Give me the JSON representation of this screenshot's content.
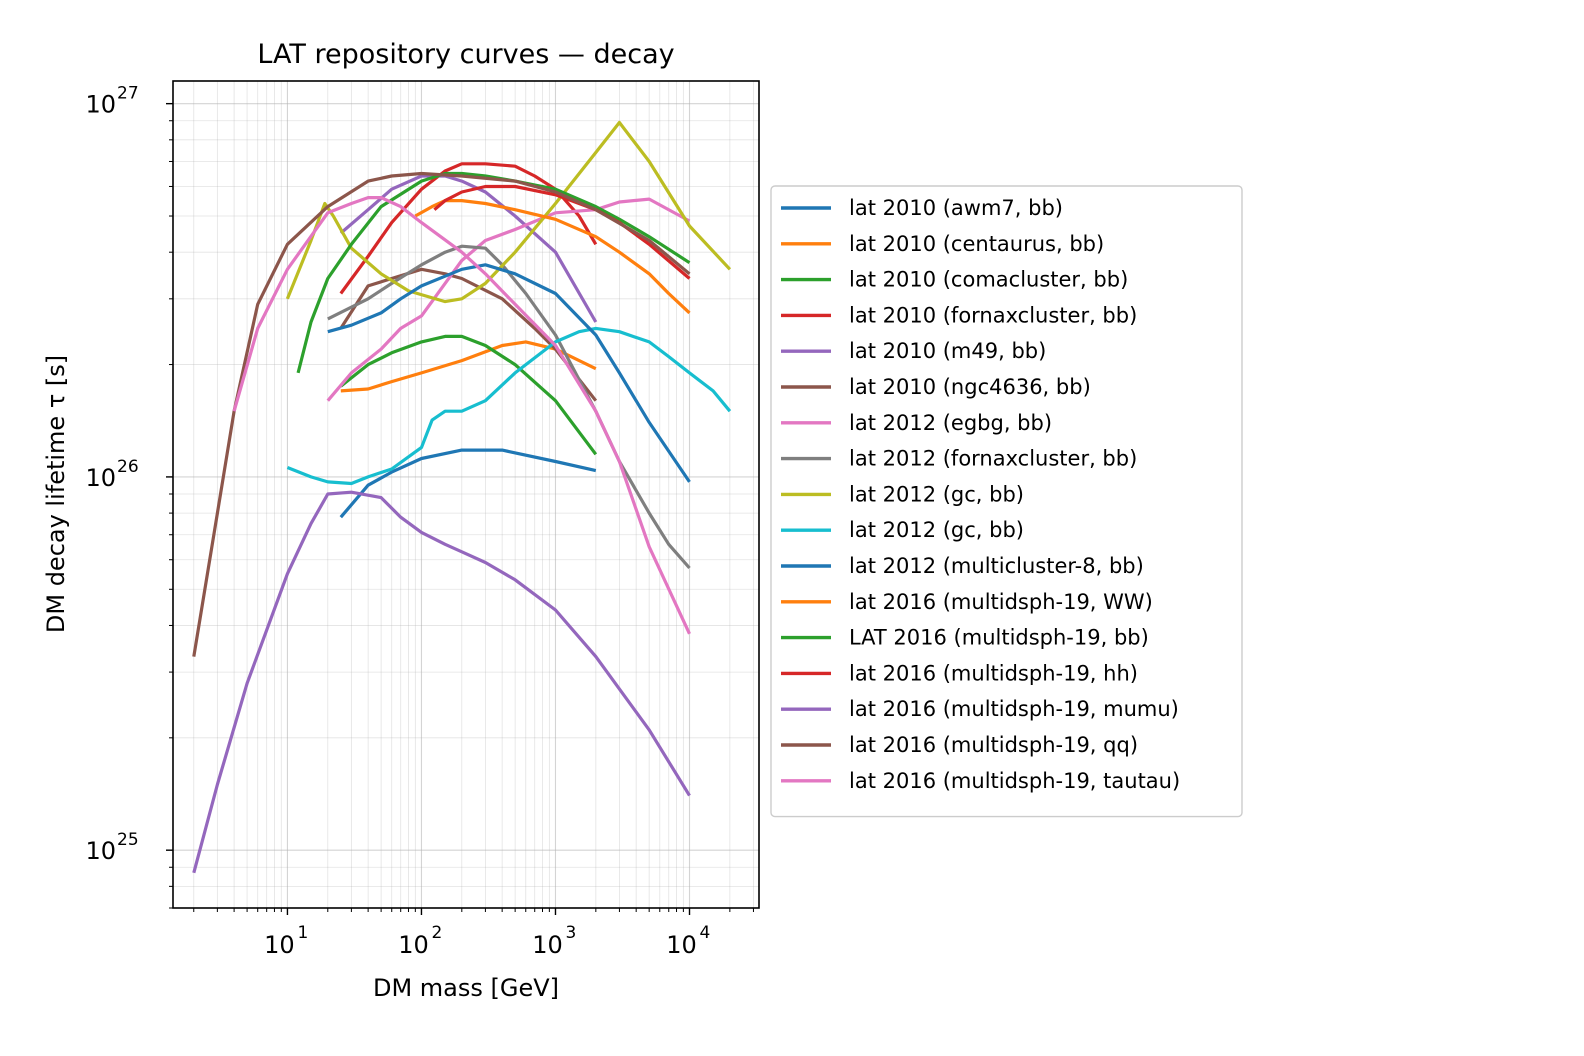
{
  "chart_data": {
    "type": "line",
    "title": "LAT repository curves — decay",
    "xlabel": "DM mass [GeV]",
    "ylabel": "DM decay lifetime τ [s]",
    "xscale": "log",
    "yscale": "log",
    "xlim": [
      1.4,
      33000
    ],
    "ylim": [
      7e+24,
      1.15e+27
    ],
    "x_ticks": [
      {
        "base": "10",
        "exp": "1",
        "value": 10
      },
      {
        "base": "10",
        "exp": "2",
        "value": 100
      },
      {
        "base": "10",
        "exp": "3",
        "value": 1000
      },
      {
        "base": "10",
        "exp": "4",
        "value": 10000
      }
    ],
    "y_ticks": [
      {
        "base": "10",
        "exp": "25",
        "value": 1e+25
      },
      {
        "base": "10",
        "exp": "26",
        "value": 1e+26
      },
      {
        "base": "10",
        "exp": "27",
        "value": 1e+27
      }
    ],
    "grid": true,
    "legend_position": "right-outside",
    "series": [
      {
        "name": "lat 2010 (awm7, bb)",
        "color": "#1f77b4",
        "points": [
          [
            25,
            7.8e+25
          ],
          [
            40,
            9.5e+25
          ],
          [
            60,
            1.03e+26
          ],
          [
            100,
            1.12e+26
          ],
          [
            200,
            1.18e+26
          ],
          [
            400,
            1.18e+26
          ],
          [
            1000,
            1.1e+26
          ],
          [
            2000,
            1.04e+26
          ]
        ]
      },
      {
        "name": "lat 2010 (centaurus, bb)",
        "color": "#ff7f0e",
        "points": [
          [
            25,
            1.7e+26
          ],
          [
            40,
            1.72e+26
          ],
          [
            60,
            1.8e+26
          ],
          [
            100,
            1.9e+26
          ],
          [
            200,
            2.05e+26
          ],
          [
            400,
            2.25e+26
          ],
          [
            600,
            2.3e+26
          ],
          [
            1000,
            2.2e+26
          ],
          [
            2000,
            1.95e+26
          ]
        ]
      },
      {
        "name": "lat 2010 (comacluster, bb)",
        "color": "#2ca02c",
        "points": [
          [
            25,
            1.75e+26
          ],
          [
            40,
            2e+26
          ],
          [
            60,
            2.15e+26
          ],
          [
            100,
            2.3e+26
          ],
          [
            150,
            2.38e+26
          ],
          [
            200,
            2.38e+26
          ],
          [
            300,
            2.25e+26
          ],
          [
            500,
            2e+26
          ],
          [
            1000,
            1.6e+26
          ],
          [
            2000,
            1.15e+26
          ]
        ]
      },
      {
        "name": "lat 2010 (fornaxcluster, bb)",
        "color": "#d62728",
        "points": [
          [
            25,
            3.1e+26
          ],
          [
            40,
            3.9e+26
          ],
          [
            60,
            4.8e+26
          ],
          [
            100,
            5.9e+26
          ],
          [
            150,
            6.6e+26
          ],
          [
            200,
            6.9e+26
          ],
          [
            300,
            6.9e+26
          ],
          [
            500,
            6.8e+26
          ],
          [
            700,
            6.4e+26
          ],
          [
            1000,
            5.9e+26
          ],
          [
            1500,
            5e+26
          ],
          [
            2000,
            4.2e+26
          ]
        ]
      },
      {
        "name": "lat 2010 (m49, bb)",
        "color": "#9467bd",
        "points": [
          [
            25,
            4.5e+26
          ],
          [
            40,
            5.2e+26
          ],
          [
            60,
            5.9e+26
          ],
          [
            100,
            6.4e+26
          ],
          [
            150,
            6.4e+26
          ],
          [
            200,
            6.2e+26
          ],
          [
            300,
            5.8e+26
          ],
          [
            500,
            5e+26
          ],
          [
            1000,
            4e+26
          ],
          [
            2000,
            2.6e+26
          ]
        ]
      },
      {
        "name": "lat 2010 (ngc4636, bb)",
        "color": "#8c564b",
        "points": [
          [
            25,
            2.5e+26
          ],
          [
            40,
            3.25e+26
          ],
          [
            60,
            3.4e+26
          ],
          [
            100,
            3.6e+26
          ],
          [
            150,
            3.5e+26
          ],
          [
            200,
            3.4e+26
          ],
          [
            400,
            3e+26
          ],
          [
            700,
            2.5e+26
          ],
          [
            1000,
            2.2e+26
          ],
          [
            2000,
            1.6e+26
          ]
        ]
      },
      {
        "name": "lat 2012 (egbg, bb)",
        "color": "#e377c2",
        "points": [
          [
            20,
            1.6e+26
          ],
          [
            30,
            1.9e+26
          ],
          [
            50,
            2.2e+26
          ],
          [
            70,
            2.5e+26
          ],
          [
            100,
            2.7e+26
          ],
          [
            150,
            3.3e+26
          ],
          [
            200,
            3.8e+26
          ],
          [
            300,
            4.3e+26
          ],
          [
            500,
            4.6e+26
          ],
          [
            1000,
            5.1e+26
          ],
          [
            2000,
            5.2e+26
          ],
          [
            3000,
            5.45e+26
          ],
          [
            5000,
            5.55e+26
          ],
          [
            10000,
            4.85e+26
          ]
        ]
      },
      {
        "name": "lat 2012 (fornaxcluster, bb)",
        "color": "#7f7f7f",
        "points": [
          [
            20,
            2.65e+26
          ],
          [
            40,
            3e+26
          ],
          [
            60,
            3.3e+26
          ],
          [
            100,
            3.7e+26
          ],
          [
            150,
            4e+26
          ],
          [
            200,
            4.15e+26
          ],
          [
            300,
            4.1e+26
          ],
          [
            400,
            3.7e+26
          ],
          [
            600,
            3.1e+26
          ],
          [
            1000,
            2.4e+26
          ],
          [
            2000,
            1.5e+26
          ],
          [
            3000,
            1.1e+26
          ],
          [
            5000,
            8e+25
          ],
          [
            7000,
            6.6e+25
          ],
          [
            10000,
            5.7e+25
          ]
        ]
      },
      {
        "name": "lat 2012 (gc, bb)",
        "color": "#bcbd22",
        "points": [
          [
            10,
            3e+26
          ],
          [
            15,
            4.3e+26
          ],
          [
            19,
            5.4e+26
          ],
          [
            22,
            5e+26
          ],
          [
            30,
            4.1e+26
          ],
          [
            50,
            3.5e+26
          ],
          [
            80,
            3.15e+26
          ],
          [
            150,
            2.95e+26
          ],
          [
            200,
            3e+26
          ],
          [
            300,
            3.3e+26
          ],
          [
            500,
            4e+26
          ],
          [
            1000,
            5.4e+26
          ],
          [
            2000,
            7.4e+26
          ],
          [
            3000,
            8.9e+26
          ],
          [
            5000,
            7e+26
          ],
          [
            10000,
            4.7e+26
          ],
          [
            20000,
            3.6e+26
          ]
        ]
      },
      {
        "name": "lat 2012 (gc, bb)",
        "color": "#17becf",
        "points": [
          [
            10,
            1.06e+26
          ],
          [
            15,
            1e+26
          ],
          [
            20,
            9.7e+25
          ],
          [
            30,
            9.6e+25
          ],
          [
            40,
            1e+26
          ],
          [
            60,
            1.05e+26
          ],
          [
            100,
            1.2e+26
          ],
          [
            120,
            1.42e+26
          ],
          [
            150,
            1.5e+26
          ],
          [
            200,
            1.5e+26
          ],
          [
            300,
            1.6e+26
          ],
          [
            500,
            1.9e+26
          ],
          [
            1000,
            2.3e+26
          ],
          [
            1500,
            2.45e+26
          ],
          [
            2000,
            2.5e+26
          ],
          [
            3000,
            2.45e+26
          ],
          [
            5000,
            2.3e+26
          ],
          [
            7000,
            2.1e+26
          ],
          [
            10000,
            1.9e+26
          ],
          [
            15000,
            1.7e+26
          ],
          [
            20000,
            1.5e+26
          ]
        ]
      },
      {
        "name": "lat 2012 (multicluster-8, bb)",
        "color": "#1f77b4",
        "points": [
          [
            20,
            2.45e+26
          ],
          [
            30,
            2.55e+26
          ],
          [
            50,
            2.75e+26
          ],
          [
            70,
            3e+26
          ],
          [
            100,
            3.25e+26
          ],
          [
            150,
            3.45e+26
          ],
          [
            200,
            3.6e+26
          ],
          [
            300,
            3.7e+26
          ],
          [
            500,
            3.5e+26
          ],
          [
            1000,
            3.1e+26
          ],
          [
            2000,
            2.4e+26
          ],
          [
            3000,
            1.9e+26
          ],
          [
            5000,
            1.4e+26
          ],
          [
            10000,
            9.7e+25
          ]
        ]
      },
      {
        "name": "lat 2016 (multidsph-19, WW)",
        "color": "#ff7f0e",
        "points": [
          [
            90,
            5e+26
          ],
          [
            120,
            5.3e+26
          ],
          [
            150,
            5.5e+26
          ],
          [
            200,
            5.5e+26
          ],
          [
            300,
            5.4e+26
          ],
          [
            500,
            5.2e+26
          ],
          [
            1000,
            4.9e+26
          ],
          [
            2000,
            4.4e+26
          ],
          [
            3000,
            4e+26
          ],
          [
            5000,
            3.5e+26
          ],
          [
            7000,
            3.1e+26
          ],
          [
            10000,
            2.75e+26
          ]
        ]
      },
      {
        "name": "LAT 2016 (multidsph-19, bb)",
        "color": "#2ca02c",
        "points": [
          [
            12,
            1.9e+26
          ],
          [
            15,
            2.6e+26
          ],
          [
            20,
            3.4e+26
          ],
          [
            30,
            4.2e+26
          ],
          [
            50,
            5.3e+26
          ],
          [
            100,
            6.2e+26
          ],
          [
            150,
            6.5e+26
          ],
          [
            200,
            6.5e+26
          ],
          [
            300,
            6.4e+26
          ],
          [
            500,
            6.2e+26
          ],
          [
            1000,
            5.9e+26
          ],
          [
            2000,
            5.3e+26
          ],
          [
            3000,
            4.9e+26
          ],
          [
            5000,
            4.4e+26
          ],
          [
            10000,
            3.75e+26
          ]
        ]
      },
      {
        "name": "lat 2016 (multidsph-19, hh)",
        "color": "#d62728",
        "points": [
          [
            125,
            5.2e+26
          ],
          [
            150,
            5.5e+26
          ],
          [
            200,
            5.8e+26
          ],
          [
            300,
            6e+26
          ],
          [
            500,
            6e+26
          ],
          [
            1000,
            5.7e+26
          ],
          [
            2000,
            5.2e+26
          ],
          [
            3000,
            4.8e+26
          ],
          [
            5000,
            4.2e+26
          ],
          [
            10000,
            3.4e+26
          ]
        ]
      },
      {
        "name": "lat 2016 (multidsph-19, mumu)",
        "color": "#9467bd",
        "points": [
          [
            2,
            8.7e+24
          ],
          [
            3,
            1.5e+25
          ],
          [
            5,
            2.8e+25
          ],
          [
            10,
            5.5e+25
          ],
          [
            15,
            7.5e+25
          ],
          [
            20,
            9e+25
          ],
          [
            30,
            9.1e+25
          ],
          [
            50,
            8.8e+25
          ],
          [
            70,
            7.8e+25
          ],
          [
            100,
            7.1e+25
          ],
          [
            150,
            6.6e+25
          ],
          [
            200,
            6.3e+25
          ],
          [
            300,
            5.9e+25
          ],
          [
            500,
            5.3e+25
          ],
          [
            1000,
            4.4e+25
          ],
          [
            2000,
            3.3e+25
          ],
          [
            5000,
            2.1e+25
          ],
          [
            10000,
            1.4e+25
          ]
        ]
      },
      {
        "name": "lat 2016 (multidsph-19, qq)",
        "color": "#8c564b",
        "points": [
          [
            2,
            3.3e+25
          ],
          [
            3,
            8e+25
          ],
          [
            4,
            1.5e+26
          ],
          [
            6,
            2.9e+26
          ],
          [
            10,
            4.2e+26
          ],
          [
            20,
            5.3e+26
          ],
          [
            40,
            6.2e+26
          ],
          [
            60,
            6.4e+26
          ],
          [
            100,
            6.5e+26
          ],
          [
            200,
            6.4e+26
          ],
          [
            500,
            6.2e+26
          ],
          [
            1000,
            5.8e+26
          ],
          [
            2000,
            5.2e+26
          ],
          [
            5000,
            4.3e+26
          ],
          [
            10000,
            3.5e+26
          ]
        ]
      },
      {
        "name": "lat 2016 (multidsph-19, tautau)",
        "color": "#e377c2",
        "points": [
          [
            4,
            1.5e+26
          ],
          [
            6,
            2.5e+26
          ],
          [
            10,
            3.6e+26
          ],
          [
            20,
            5.1e+26
          ],
          [
            30,
            5.4e+26
          ],
          [
            40,
            5.6e+26
          ],
          [
            50,
            5.6e+26
          ],
          [
            70,
            5.3e+26
          ],
          [
            100,
            4.8e+26
          ],
          [
            200,
            4e+26
          ],
          [
            300,
            3.5e+26
          ],
          [
            500,
            2.9e+26
          ],
          [
            1000,
            2.25e+26
          ],
          [
            2000,
            1.5e+26
          ],
          [
            3000,
            1.1e+26
          ],
          [
            5000,
            6.5e+25
          ],
          [
            10000,
            3.8e+25
          ]
        ]
      }
    ]
  }
}
